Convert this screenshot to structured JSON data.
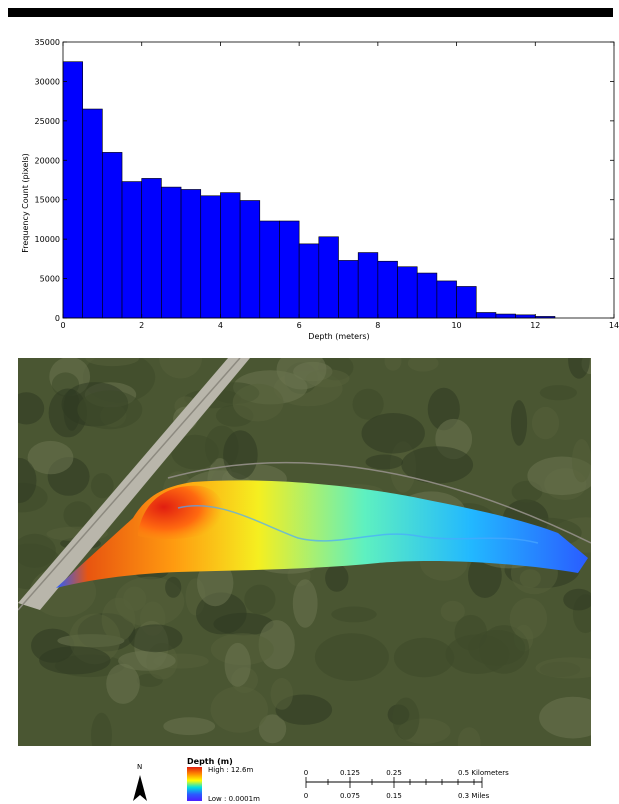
{
  "chart_data": {
    "type": "bar",
    "title": "",
    "xlabel": "Depth (meters)",
    "ylabel": "Frequency Count (pixels)",
    "xlim": [
      0,
      14
    ],
    "ylim": [
      0,
      35000
    ],
    "xticks": [
      0,
      2,
      4,
      6,
      8,
      10,
      12,
      14
    ],
    "yticks": [
      0,
      5000,
      10000,
      15000,
      20000,
      25000,
      30000,
      35000
    ],
    "grid": false,
    "bar_color": "#0000ff",
    "bin_width": 0.5,
    "bin_starts": [
      0,
      0.5,
      1,
      1.5,
      2,
      2.5,
      3,
      3.5,
      4,
      4.5,
      5,
      5.5,
      6,
      6.5,
      7,
      7.5,
      8,
      8.5,
      9,
      9.5,
      10,
      10.5,
      11,
      11.5,
      12
    ],
    "values": [
      32500,
      26500,
      21000,
      17300,
      17700,
      16600,
      16300,
      15500,
      15900,
      14900,
      12300,
      12300,
      9400,
      10300,
      7300,
      8300,
      7200,
      6500,
      5700,
      4700,
      4000,
      700,
      500,
      400,
      200
    ]
  },
  "legend": {
    "title": "Depth (m)",
    "high": "High : 12.6m",
    "low": "Low : 0.0001m",
    "ramp_colors": [
      "#e11e10",
      "#ff8800",
      "#ffff00",
      "#00e0e0",
      "#2a5cff",
      "#4b1fff"
    ]
  },
  "north_arrow": {
    "label": "N"
  },
  "scale_bar": {
    "km_ticks": [
      "0",
      "0.125",
      "0.25",
      "0.5 Kilometers"
    ],
    "mile_ticks": [
      "0",
      "0.075",
      "0.15",
      "0.3 Miles"
    ]
  },
  "map": {
    "aerial_colors": [
      "#3e4a2a",
      "#56613a",
      "#6b7450",
      "#2f3a22"
    ],
    "road_color": "#b9b6ab"
  }
}
